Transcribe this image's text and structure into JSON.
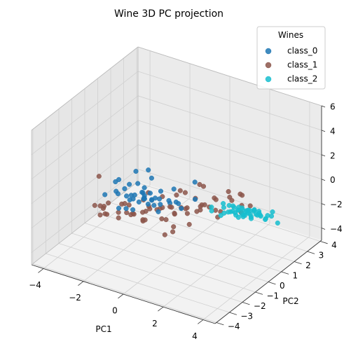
{
  "chart_data": {
    "type": "scatter",
    "title": "Wine 3D PC projection",
    "xlabel": "PC1",
    "ylabel": "PC2",
    "zlabel": "",
    "xlim": [
      -4.6,
      4.6
    ],
    "ylim": [
      -4.1,
      4.1
    ],
    "zlim": [
      -5,
      6
    ],
    "x_ticks": [
      -4,
      -2,
      0,
      2,
      4
    ],
    "y_ticks": [
      -4,
      -3,
      -2,
      -1,
      0,
      1,
      2,
      3,
      4
    ],
    "z_ticks": [
      -4,
      -2,
      0,
      2,
      4,
      6
    ],
    "grid": true,
    "legend": {
      "title": "Wines",
      "position": "top-right"
    },
    "series": [
      {
        "name": "class_0",
        "color": "#1f77b4",
        "points": [
          [
            -1.2,
            -2.6,
            2.5
          ],
          [
            -1.5,
            -2.4,
            2.0
          ],
          [
            -1.0,
            -2.1,
            1.8
          ],
          [
            -0.8,
            -1.9,
            2.8
          ],
          [
            -1.3,
            -2.0,
            1.2
          ],
          [
            -0.9,
            -1.6,
            1.5
          ],
          [
            -1.6,
            -2.2,
            1.0
          ],
          [
            -0.6,
            -2.3,
            1.3
          ],
          [
            -1.1,
            -1.8,
            0.6
          ],
          [
            -0.7,
            -1.4,
            1.1
          ],
          [
            -1.4,
            -1.7,
            0.3
          ],
          [
            -0.5,
            -1.7,
            0.8
          ],
          [
            -1.2,
            -1.5,
            0.0
          ],
          [
            -0.9,
            -1.2,
            0.4
          ],
          [
            -0.3,
            -2.0,
            0.9
          ],
          [
            -1.7,
            -1.9,
            0.5
          ],
          [
            -0.6,
            -1.0,
            1.6
          ],
          [
            -0.4,
            -1.3,
            0.2
          ],
          [
            -1.0,
            -1.0,
            -0.3
          ],
          [
            -0.2,
            -1.6,
            0.5
          ],
          [
            -1.5,
            -1.3,
            -0.4
          ],
          [
            -0.8,
            -0.8,
            0.1
          ],
          [
            -0.1,
            -1.1,
            -0.2
          ],
          [
            -1.3,
            -0.9,
            -0.8
          ],
          [
            -0.4,
            -0.6,
            0.3
          ],
          [
            0.0,
            -1.4,
            -0.5
          ],
          [
            -0.6,
            -0.4,
            -0.6
          ],
          [
            0.2,
            -0.9,
            0.1
          ],
          [
            -1.1,
            -0.5,
            -1.2
          ],
          [
            0.3,
            -0.5,
            -0.3
          ],
          [
            -0.2,
            -0.2,
            -0.9
          ],
          [
            -0.9,
            -2.5,
            0.2
          ],
          [
            -0.3,
            -2.2,
            1.6
          ],
          [
            -1.9,
            -2.6,
            0.9
          ],
          [
            -0.7,
            -1.1,
            2.3
          ],
          [
            0.1,
            -1.8,
            1.0
          ],
          [
            -1.4,
            -2.3,
            -0.2
          ],
          [
            -0.5,
            -2.6,
            0.4
          ],
          [
            -0.2,
            0.1,
            0.0
          ],
          [
            0.5,
            -0.4,
            -0.8
          ],
          [
            0.4,
            0.8,
            0.3
          ],
          [
            -0.1,
            0.3,
            -1.3
          ],
          [
            0.2,
            -2.8,
            1.9
          ],
          [
            -1.0,
            -0.2,
            -1.5
          ],
          [
            0.8,
            0.2,
            -0.4
          ]
        ]
      },
      {
        "name": "class_1",
        "color": "#8c564b",
        "points": [
          [
            0.9,
            0.4,
            0.7
          ],
          [
            -2.0,
            -2.9,
            2.6
          ],
          [
            -2.2,
            -2.5,
            -1.0
          ],
          [
            -2.5,
            -1.8,
            -1.2
          ],
          [
            -2.0,
            -1.4,
            -1.6
          ],
          [
            -1.6,
            -0.9,
            -1.9
          ],
          [
            -2.8,
            -1.2,
            -2.3
          ],
          [
            -1.9,
            -0.6,
            -2.4
          ],
          [
            -2.4,
            -0.3,
            -2.0
          ],
          [
            -1.3,
            -0.6,
            -2.5
          ],
          [
            -3.1,
            -0.6,
            -3.0
          ],
          [
            -2.2,
            0.1,
            -3.1
          ],
          [
            -1.6,
            0.4,
            -2.6
          ],
          [
            -2.7,
            0.3,
            -3.4
          ],
          [
            -1.0,
            0.4,
            -3.1
          ],
          [
            -1.7,
            1.1,
            -3.3
          ],
          [
            -0.9,
            1.0,
            -2.6
          ],
          [
            -2.3,
            1.4,
            -3.6
          ],
          [
            -0.5,
            1.6,
            -3.4
          ],
          [
            -1.2,
            1.7,
            -3.9
          ],
          [
            -0.3,
            0.3,
            -2.2
          ],
          [
            -0.7,
            -0.2,
            -1.6
          ],
          [
            0.0,
            0.7,
            -2.0
          ],
          [
            0.3,
            1.1,
            -2.4
          ],
          [
            -0.1,
            2.1,
            -2.9
          ],
          [
            0.6,
            1.6,
            -2.3
          ],
          [
            -0.2,
            -0.5,
            -2.0
          ],
          [
            0.8,
            0.6,
            -1.6
          ],
          [
            0.3,
            -0.1,
            -1.1
          ],
          [
            1.0,
            1.5,
            -1.4
          ],
          [
            1.3,
            1.0,
            -1.7
          ],
          [
            1.1,
            2.4,
            -1.9
          ],
          [
            1.6,
            1.8,
            -1.4
          ],
          [
            1.8,
            0.4,
            -1.5
          ],
          [
            2.0,
            2.6,
            -2.3
          ],
          [
            0.5,
            -1.0,
            -1.8
          ],
          [
            0.0,
            -0.9,
            -2.8
          ],
          [
            -0.6,
            -1.5,
            -1.4
          ],
          [
            -1.1,
            0.6,
            -1.5
          ],
          [
            -0.4,
            0.9,
            -0.9
          ],
          [
            0.2,
            2.6,
            -2.6
          ],
          [
            1.5,
            2.6,
            -1.6
          ],
          [
            -2.6,
            -2.3,
            -0.6
          ],
          [
            -1.8,
            -1.7,
            -1.7
          ],
          [
            -0.8,
            1.9,
            -2.1
          ],
          [
            0.4,
            0.2,
            -1.3
          ],
          [
            -3.5,
            -0.5,
            -2.6
          ],
          [
            0.9,
            -0.4,
            -1.9
          ],
          [
            -1.5,
            2.3,
            -3.0
          ],
          [
            -1.4,
            -0.4,
            -1.1
          ],
          [
            -2.9,
            0.8,
            -3.3
          ],
          [
            -0.9,
            -1.2,
            -1.9
          ],
          [
            1.3,
            2.0,
            -1.0
          ],
          [
            -2.1,
            -1.0,
            -1.3
          ],
          [
            0.7,
            3.9,
            -4.6
          ],
          [
            -0.6,
            3.0,
            -2.4
          ],
          [
            0.1,
            1.3,
            -1.6
          ],
          [
            -1.7,
            0.0,
            -2.6
          ],
          [
            1.4,
            2.9,
            -2.0
          ],
          [
            -2.4,
            -1.9,
            -0.9
          ],
          [
            -0.3,
            2.3,
            -3.3
          ],
          [
            0.2,
            -0.6,
            -2.7
          ],
          [
            -2.9,
            -0.8,
            -1.8
          ],
          [
            -1.1,
            0.6,
            -2.4
          ],
          [
            0.5,
            1.4,
            -2.0
          ],
          [
            1.1,
            1.7,
            -2.5
          ],
          [
            -1.8,
            0.4,
            -2.9
          ],
          [
            -2.0,
            0.9,
            -1.9
          ],
          [
            1.9,
            2.1,
            -1.9
          ],
          [
            -0.2,
            -0.2,
            -1.2
          ]
        ]
      },
      {
        "name": "class_2",
        "color": "#17becf",
        "points": [
          [
            2.8,
            -1.6,
            1.2
          ],
          [
            2.4,
            -1.0,
            0.8
          ],
          [
            3.0,
            -1.2,
            0.6
          ],
          [
            3.4,
            -0.9,
            0.9
          ],
          [
            2.6,
            -0.4,
            0.7
          ],
          [
            3.8,
            -0.7,
            0.5
          ],
          [
            2.9,
            -0.3,
            0.1
          ],
          [
            3.4,
            -0.2,
            0.1
          ],
          [
            2.3,
            0.1,
            -0.2
          ],
          [
            4.0,
            -0.4,
            0.2
          ],
          [
            2.8,
            0.4,
            -0.4
          ],
          [
            3.5,
            0.3,
            -0.3
          ],
          [
            2.6,
            0.8,
            -0.6
          ],
          [
            3.2,
            0.6,
            -0.6
          ],
          [
            3.9,
            0.5,
            -0.4
          ],
          [
            2.4,
            1.1,
            -1.2
          ],
          [
            3.4,
            1.0,
            -1.0
          ],
          [
            2.7,
            1.5,
            -1.4
          ],
          [
            3.6,
            1.3,
            -1.5
          ],
          [
            2.3,
            1.8,
            -2.0
          ],
          [
            3.3,
            1.8,
            -2.0
          ],
          [
            2.6,
            2.0,
            -1.8
          ],
          [
            3.9,
            1.4,
            -0.8
          ],
          [
            3.0,
            2.4,
            -2.4
          ],
          [
            2.2,
            2.0,
            -2.1
          ],
          [
            3.5,
            -1.4,
            1.3
          ],
          [
            3.7,
            2.1,
            -2.4
          ],
          [
            2.5,
            2.5,
            -2.4
          ],
          [
            3.1,
            0.0,
            -0.5
          ],
          [
            3.3,
            -0.5,
            0.2
          ],
          [
            2.8,
            1.2,
            -1.1
          ],
          [
            3.5,
            0.6,
            -0.2
          ],
          [
            2.4,
            1.4,
            -1.4
          ],
          [
            3.0,
            -0.1,
            -0.1
          ],
          [
            2.9,
            0.7,
            -1.0
          ],
          [
            3.1,
            1.6,
            -1.5
          ],
          [
            3.6,
            0.9,
            -0.8
          ],
          [
            2.7,
            0.9,
            -0.7
          ],
          [
            2.1,
            1.2,
            -1.2
          ],
          [
            3.8,
            -0.1,
            0.0
          ],
          [
            2.7,
            1.8,
            -1.7
          ],
          [
            3.3,
            0.2,
            -0.4
          ],
          [
            2.5,
            0.5,
            -0.3
          ],
          [
            3.0,
            2.7,
            -2.7
          ],
          [
            1.9,
            2.6,
            -2.7
          ],
          [
            1.4,
            1.9,
            -2.0
          ],
          [
            3.2,
            1.2,
            -1.2
          ],
          [
            2.9,
            -0.8,
            0.4
          ]
        ]
      }
    ]
  }
}
